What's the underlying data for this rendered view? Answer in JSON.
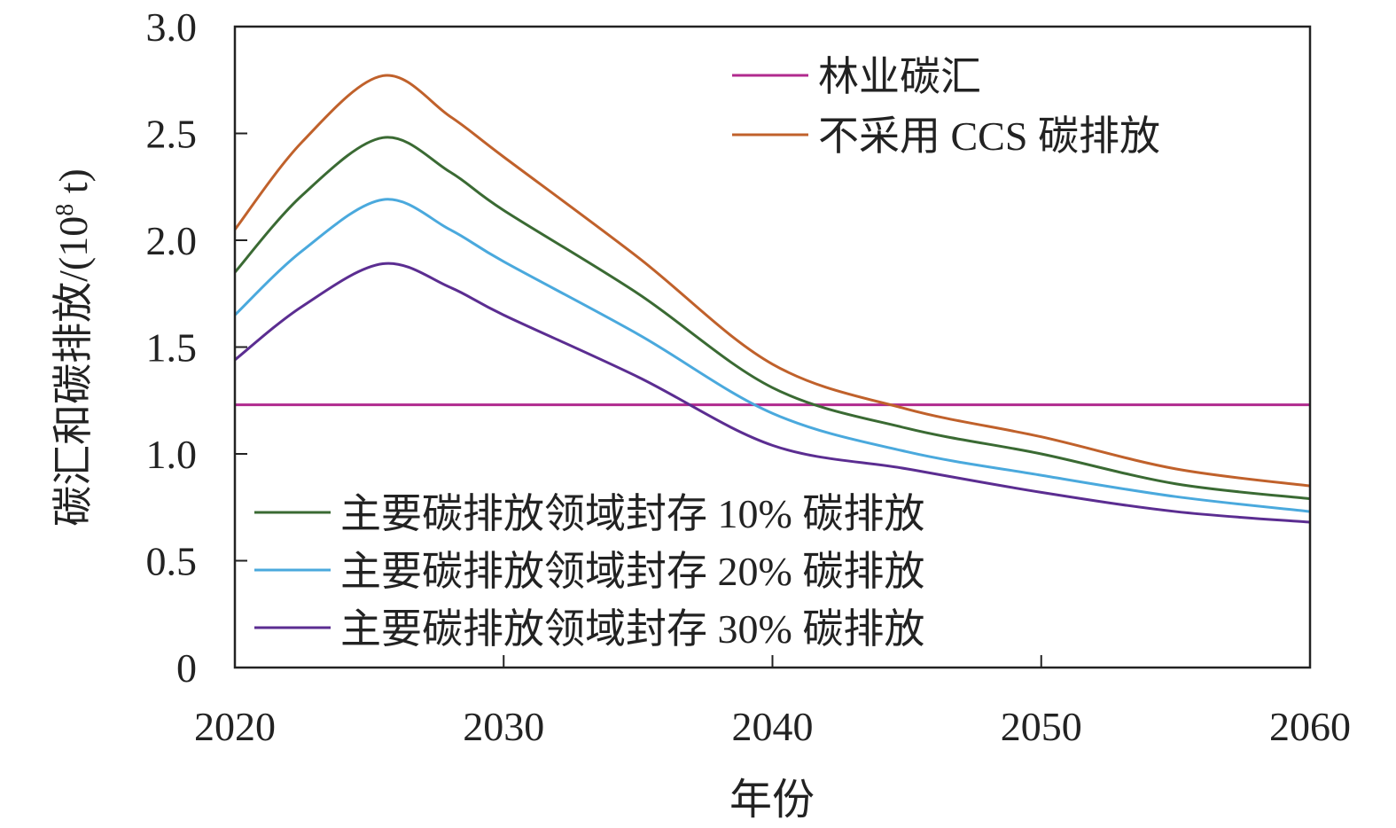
{
  "chart_data": {
    "type": "line",
    "xlabel": "年份",
    "ylabel": "碳汇和碳排放/(10⁸ t)",
    "ylabel_main": "碳汇和碳排放/(10",
    "ylabel_sup": "8",
    "ylabel_tail": " t)",
    "xlim": [
      2020,
      2060
    ],
    "ylim": [
      0,
      3.0
    ],
    "xticks": [
      "2020",
      "2030",
      "2040",
      "2050",
      "2060"
    ],
    "xtick_values": [
      2020,
      2030,
      2040,
      2050,
      2060
    ],
    "yticks": [
      "0",
      "0.5",
      "1.0",
      "1.5",
      "2.0",
      "2.5",
      "3.0"
    ],
    "ytick_values": [
      0,
      0.5,
      1.0,
      1.5,
      2.0,
      2.5,
      3.0
    ],
    "x": [
      2020,
      2022.5,
      2025.5,
      2028,
      2030,
      2035,
      2040,
      2045,
      2050,
      2055,
      2060
    ],
    "series": [
      {
        "name": "林业碳汇",
        "color": "#b02a8e",
        "values": [
          1.23,
          1.23,
          1.23,
          1.23,
          1.23,
          1.23,
          1.23,
          1.23,
          1.23,
          1.23,
          1.23
        ]
      },
      {
        "name": "不采用 CCS 碳排放",
        "color": "#c0612b",
        "values": [
          2.05,
          2.46,
          2.77,
          2.58,
          2.39,
          1.92,
          1.42,
          1.21,
          1.08,
          0.93,
          0.85
        ]
      },
      {
        "name": "主要碳排放领域封存 10% 碳排放",
        "color": "#3a6a33",
        "values": [
          1.85,
          2.21,
          2.48,
          2.32,
          2.14,
          1.75,
          1.31,
          1.12,
          1.0,
          0.86,
          0.79
        ]
      },
      {
        "name": "主要碳排放领域封存 20% 碳排放",
        "color": "#4aa9dd",
        "values": [
          1.65,
          1.95,
          2.19,
          2.05,
          1.9,
          1.56,
          1.19,
          1.01,
          0.9,
          0.8,
          0.73
        ]
      },
      {
        "name": "主要碳排放领域封存 30% 碳排放",
        "color": "#5b2d91",
        "values": [
          1.44,
          1.69,
          1.89,
          1.78,
          1.65,
          1.36,
          1.04,
          0.93,
          0.82,
          0.73,
          0.68
        ]
      }
    ],
    "legend_placement": [
      "top-right",
      "bottom-left"
    ],
    "grid": false
  }
}
